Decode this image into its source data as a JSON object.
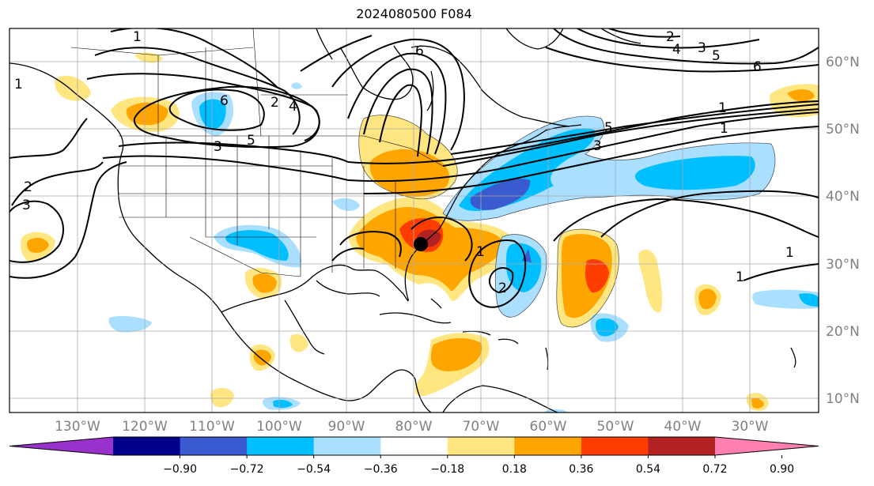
{
  "title": "2024080500 F084",
  "lon_ticks": [
    "130°W",
    "120°W",
    "110°W",
    "100°W",
    "90°W",
    "80°W",
    "70°W",
    "60°W",
    "50°W",
    "40°W",
    "30°W"
  ],
  "lat_ticks": [
    "60°N",
    "50°N",
    "40°N",
    "30°N",
    "20°N",
    "10°N"
  ],
  "colorbar": {
    "labels": [
      "−0.90",
      "−0.72",
      "−0.54",
      "−0.36",
      "−0.18",
      "0.18",
      "0.36",
      "0.54",
      "0.72",
      "0.90"
    ],
    "colors": [
      "#9932cc",
      "#00008b",
      "#3a5bcf",
      "#00bfff",
      "#aadfff",
      "#ffffff",
      "#ffe680",
      "#ffa500",
      "#ff3c00",
      "#b22222",
      "#ff80b0"
    ]
  },
  "contour_labels": [
    "1",
    "6",
    "5",
    "4",
    "3",
    "2",
    "1",
    "6",
    "5",
    "4",
    "3",
    "2",
    "1",
    "6",
    "1",
    "3",
    "5",
    "3",
    "2",
    "1",
    "2",
    "1",
    "1"
  ],
  "marker": {
    "lon": -80,
    "lat": 33
  }
}
